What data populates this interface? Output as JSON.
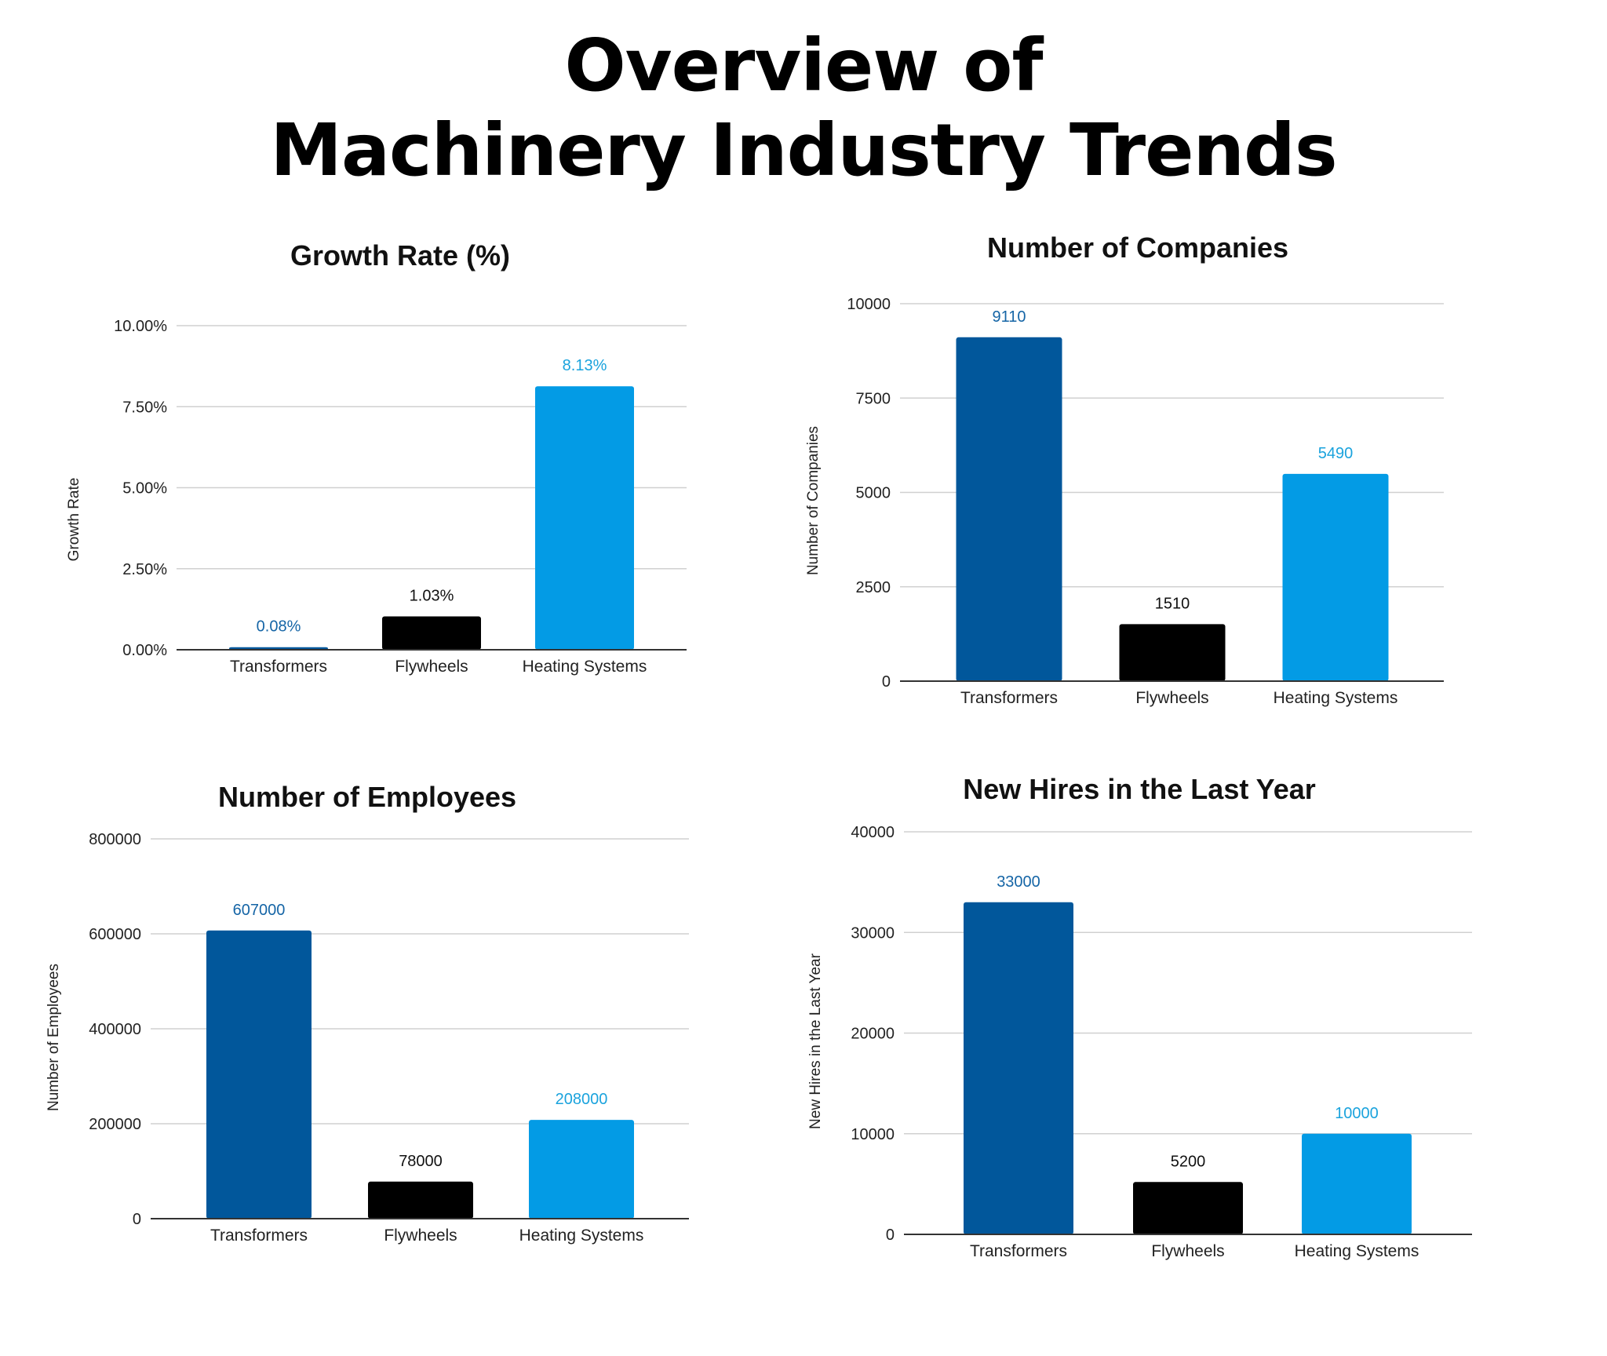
{
  "title": {
    "line1": "Overview of",
    "line2": "Machinery Industry Trends"
  },
  "colors": [
    "#01579b",
    "#000000",
    "#039be5"
  ],
  "label_colors": [
    "#1565a6",
    "#111111",
    "#1aa3dd"
  ],
  "chart_data": [
    {
      "type": "bar",
      "title": "Growth Rate (%)",
      "ylabel": "Growth Rate",
      "categories": [
        "Transformers",
        "Flywheels",
        "Heating Systems"
      ],
      "values": [
        0.08,
        1.03,
        8.13
      ],
      "value_labels": [
        "0.08%",
        "1.03%",
        "8.13%"
      ],
      "ylim": [
        0,
        10
      ],
      "yticks": [
        0,
        2.5,
        5,
        7.5,
        10
      ],
      "ytick_labels": [
        "0.00%",
        "2.50%",
        "5.00%",
        "7.50%",
        "10.00%"
      ],
      "grid": true
    },
    {
      "type": "bar",
      "title": "Number of Companies",
      "ylabel": "Number of Companies",
      "categories": [
        "Transformers",
        "Flywheels",
        "Heating Systems"
      ],
      "values": [
        9110,
        1510,
        5490
      ],
      "value_labels": [
        "9110",
        "1510",
        "5490"
      ],
      "ylim": [
        0,
        10000
      ],
      "yticks": [
        0,
        2500,
        5000,
        7500,
        10000
      ],
      "ytick_labels": [
        "0",
        "2500",
        "5000",
        "7500",
        "10000"
      ],
      "grid": true
    },
    {
      "type": "bar",
      "title": "Number of Employees",
      "ylabel": "Number of Employees",
      "categories": [
        "Transformers",
        "Flywheels",
        "Heating Systems"
      ],
      "values": [
        607000,
        78000,
        208000
      ],
      "value_labels": [
        "607000",
        "78000",
        "208000"
      ],
      "ylim": [
        0,
        800000
      ],
      "yticks": [
        0,
        200000,
        400000,
        600000,
        800000
      ],
      "ytick_labels": [
        "0",
        "200000",
        "400000",
        "600000",
        "800000"
      ],
      "grid": true
    },
    {
      "type": "bar",
      "title": "New Hires in the Last Year",
      "ylabel": "New Hires in the Last Year",
      "categories": [
        "Transformers",
        "Flywheels",
        "Heating Systems"
      ],
      "values": [
        33000,
        5200,
        10000
      ],
      "value_labels": [
        "33000",
        "5200",
        "10000"
      ],
      "ylim": [
        0,
        40000
      ],
      "yticks": [
        0,
        10000,
        20000,
        30000,
        40000
      ],
      "ytick_labels": [
        "0",
        "10000",
        "20000",
        "30000",
        "40000"
      ],
      "grid": true
    }
  ]
}
